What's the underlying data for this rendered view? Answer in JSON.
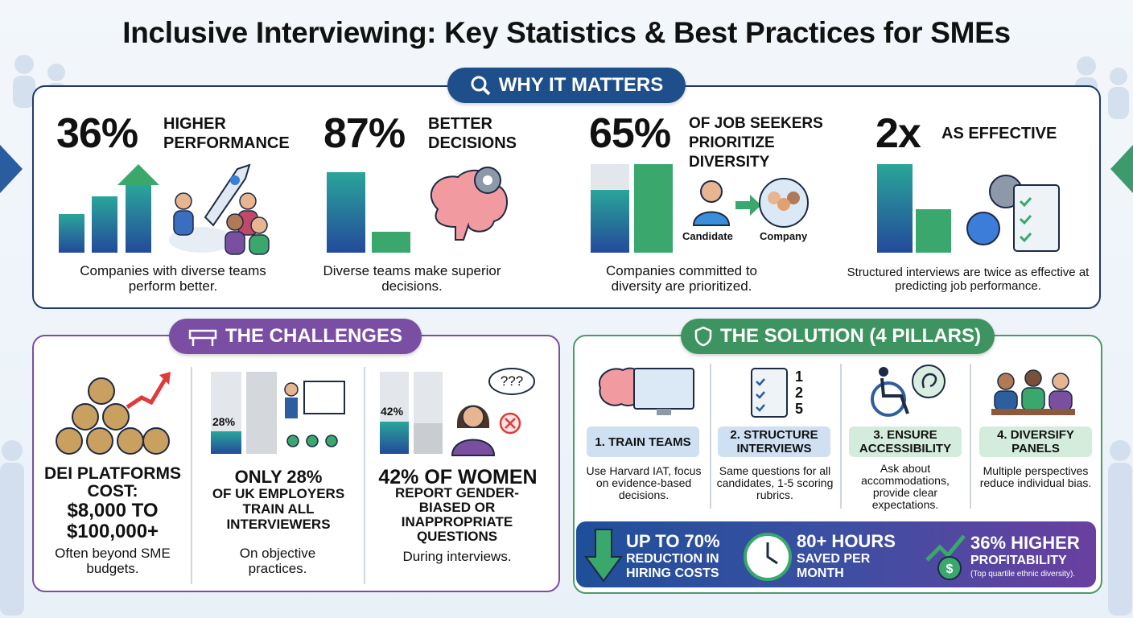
{
  "title": "Inclusive Interviewing: Key Statistics & Best Practices for SMEs",
  "why_it_matters": {
    "heading": "WHY IT MATTERS",
    "stats": [
      {
        "figure": "36%",
        "label": "HIGHER PERFORMANCE",
        "caption": "Companies with diverse teams perform better."
      },
      {
        "figure": "87%",
        "label": "BETTER DECISIONS",
        "caption": "Diverse teams make superior decisions."
      },
      {
        "figure": "65%",
        "label": "OF JOB SEEKERS PRIORITIZE DIVERSITY",
        "caption": "Companies committed to diversity are prioritized.",
        "icon_labels": [
          "Candidate",
          "Company"
        ]
      },
      {
        "figure": "2x",
        "label": "AS EFFECTIVE",
        "caption": "Structured interviews are twice as effective at predicting job performance."
      }
    ]
  },
  "challenges": {
    "heading": "THE CHALLENGES",
    "items": [
      {
        "headline": "DEI PLATFORMS COST:",
        "figure": "$8,000 TO $100,000+",
        "caption": "Often beyond SME budgets."
      },
      {
        "headline": "ONLY 28%",
        "detail": "OF UK EMPLOYERS TRAIN ALL INTERVIEWERS",
        "bar_label": "28%",
        "caption": "On objective practices."
      },
      {
        "headline": "42% OF WOMEN",
        "detail": "REPORT GENDER-BIASED OR INAPPROPRIATE QUESTIONS",
        "bar_label": "42%",
        "speech_bubble": "???",
        "caption": "During interviews."
      }
    ]
  },
  "solution": {
    "heading": "THE SOLUTION (4 PILLARS)",
    "pillars": [
      {
        "label": "1. TRAIN TEAMS",
        "caption": "Use Harvard IAT, focus on evidence-based decisions."
      },
      {
        "label": "2. STRUCTURE INTERVIEWS",
        "caption": "Same questions for all candidates, 1-5 scoring rubrics.",
        "icon_text": [
          "1",
          "2",
          "5"
        ]
      },
      {
        "label": "3. ENSURE ACCESSIBILITY",
        "caption": "Ask about accommodations, provide clear expectations."
      },
      {
        "label": "4. DIVERSIFY PANELS",
        "caption": "Multiple perspectives reduce individual bias."
      }
    ],
    "outcomes": [
      {
        "figure": "UP TO 70%",
        "label": "REDUCTION IN HIRING COSTS"
      },
      {
        "figure": "80+ HOURS",
        "label": "SAVED PER MONTH"
      },
      {
        "figure": "36% HIGHER",
        "label": "PROFITABILITY",
        "note": "(Top quartile ethnic diversity)."
      }
    ]
  }
}
